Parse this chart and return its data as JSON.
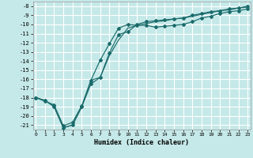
{
  "xlabel": "Humidex (Indice chaleur)",
  "bg_color": "#c5e8e8",
  "grid_color": "#ffffff",
  "line_color": "#1a6b6b",
  "xlim": [
    -0.3,
    23.3
  ],
  "ylim": [
    -21.5,
    -7.5
  ],
  "yticks": [
    -8,
    -9,
    -10,
    -11,
    -12,
    -13,
    -14,
    -15,
    -16,
    -17,
    -18,
    -19,
    -20,
    -21
  ],
  "xticks": [
    0,
    1,
    2,
    3,
    4,
    5,
    6,
    7,
    8,
    9,
    10,
    11,
    12,
    13,
    14,
    15,
    16,
    17,
    18,
    19,
    20,
    21,
    22,
    23
  ],
  "line1_x": [
    0,
    1,
    2,
    3,
    4,
    5,
    6,
    7,
    8,
    9,
    10,
    11,
    12,
    13,
    14,
    15,
    16,
    17,
    18,
    19,
    20,
    21,
    22,
    23
  ],
  "line1_y": [
    -18.0,
    -18.4,
    -18.8,
    -21.1,
    -20.7,
    -18.9,
    -16.1,
    -13.9,
    -12.1,
    -10.4,
    -10.0,
    -10.1,
    -10.1,
    -10.3,
    -10.2,
    -10.1,
    -10.0,
    -9.7,
    -9.3,
    -9.1,
    -8.8,
    -8.6,
    -8.5,
    -8.3
  ],
  "line2_x": [
    0,
    1,
    2,
    3,
    4,
    5,
    6,
    7,
    8,
    9,
    10,
    11,
    12,
    13,
    14,
    15,
    16,
    17,
    18,
    19,
    20,
    21,
    22,
    23
  ],
  "line2_y": [
    -18.0,
    -18.3,
    -19.0,
    -21.3,
    -21.0,
    -19.0,
    -16.5,
    -15.8,
    -13.1,
    -11.1,
    -10.8,
    -10.0,
    -9.7,
    -9.6,
    -9.5,
    -9.4,
    -9.3,
    -9.0,
    -8.8,
    -8.6,
    -8.5,
    -8.3,
    -8.2,
    -8.0
  ],
  "line3_x": [
    0,
    1,
    2,
    3,
    4,
    5,
    6,
    7,
    8,
    9,
    10,
    11,
    12,
    13,
    14,
    15,
    16,
    17,
    18,
    19,
    20,
    21,
    22,
    23
  ],
  "line3_y": [
    -18.0,
    -18.3,
    -19.0,
    -21.3,
    -21.0,
    -19.0,
    -16.1,
    -15.8,
    -13.4,
    -11.7,
    -10.4,
    -10.1,
    -9.9,
    -9.7,
    -9.6,
    -9.4,
    -9.3,
    -9.1,
    -8.9,
    -8.7,
    -8.5,
    -8.4,
    -8.2,
    -8.1
  ]
}
